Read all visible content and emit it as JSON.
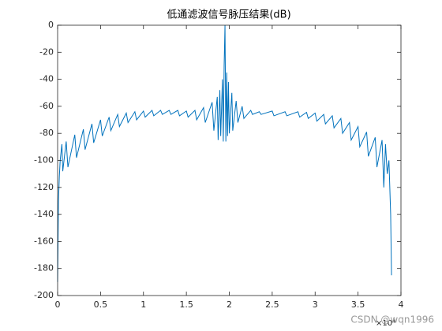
{
  "chart_data": {
    "type": "line",
    "title": "低通滤波信号脉压结果(dB)",
    "x": [
      0,
      100,
      200,
      300,
      500,
      600,
      1000,
      1200,
      2000,
      2200,
      3000,
      3200,
      4000,
      4200,
      5000,
      5200,
      6000,
      6200,
      7000,
      7200,
      8000,
      8200,
      9000,
      9200,
      10000,
      10200,
      11000,
      11200,
      12000,
      12200,
      13000,
      13200,
      14000,
      14200,
      15000,
      15200,
      16000,
      16200,
      17000,
      17200,
      18000,
      18200,
      18600,
      18700,
      18900,
      19000,
      19200,
      19300,
      19400,
      19500,
      19600,
      19700,
      19800,
      19900,
      20000,
      20300,
      20400,
      20800,
      21000,
      21500,
      21700,
      22500,
      22700,
      23500,
      23700,
      25000,
      25200,
      26500,
      26700,
      28000,
      28200,
      29000,
      29200,
      30000,
      30200,
      31000,
      31200,
      32000,
      32200,
      33000,
      33200,
      34000,
      34200,
      35000,
      35200,
      36000,
      36200,
      37000,
      37200,
      37800,
      38000,
      38200,
      38400,
      38600,
      38800,
      38900
    ],
    "values": [
      -190,
      -130,
      -112,
      -100,
      -88,
      -108,
      -86,
      -105,
      -81,
      -98,
      -77,
      -92,
      -73,
      -87,
      -70,
      -82,
      -68,
      -78,
      -66,
      -75,
      -65,
      -72,
      -64,
      -70,
      -63.5,
      -68,
      -63,
      -67,
      -63,
      -66,
      -63,
      -66,
      -63,
      -67,
      -63.5,
      -68,
      -63,
      -70,
      -61,
      -72,
      -57,
      -78,
      -53,
      -85,
      -48,
      -82,
      -40,
      -86,
      -30,
      0,
      -86,
      -35,
      -82,
      -42,
      -80,
      -50,
      -78,
      -56,
      -72,
      -60,
      -69,
      -63,
      -66,
      -64,
      -66,
      -63.5,
      -67,
      -64,
      -67,
      -64,
      -68,
      -64.5,
      -69,
      -65,
      -71,
      -66,
      -73,
      -67,
      -76,
      -69,
      -80,
      -72,
      -85,
      -75,
      -90,
      -79,
      -97,
      -83,
      -105,
      -85,
      -120,
      -88,
      -110,
      -100,
      -140,
      -185
    ],
    "color": "#0072bd",
    "xlim": [
      0,
      40000
    ],
    "xticks": [
      {
        "value": 0,
        "label": "0"
      },
      {
        "value": 5000,
        "label": "0.5"
      },
      {
        "value": 10000,
        "label": "1"
      },
      {
        "value": 15000,
        "label": "1.5"
      },
      {
        "value": 20000,
        "label": "2"
      },
      {
        "value": 25000,
        "label": "2.5"
      },
      {
        "value": 30000,
        "label": "3"
      },
      {
        "value": 35000,
        "label": "3.5"
      },
      {
        "value": 40000,
        "label": "4"
      }
    ],
    "x_multiplier": "×10⁴",
    "ylim": [
      -200,
      0
    ],
    "yticks": [
      0,
      -20,
      -40,
      -60,
      -80,
      -100,
      -120,
      -140,
      -160,
      -180,
      -200
    ],
    "watermark": "CSDN @wqn1996"
  }
}
